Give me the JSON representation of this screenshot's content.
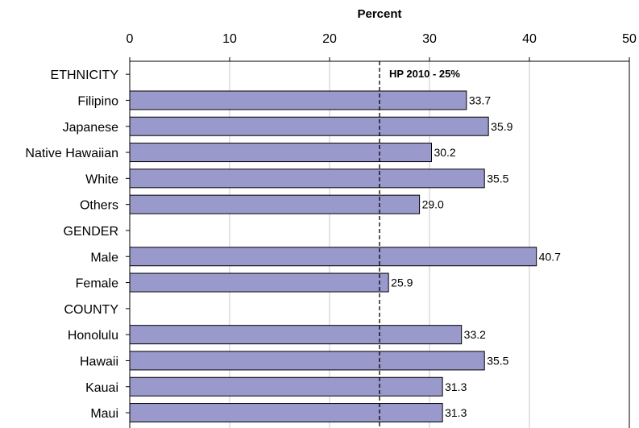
{
  "chart_data": {
    "type": "bar",
    "orientation": "horizontal",
    "xlabel": "Percent",
    "xlim": [
      0,
      50
    ],
    "xticks": [
      0,
      10,
      20,
      30,
      40,
      50
    ],
    "xaxis_position": "top",
    "grid": "vertical",
    "legend": "none",
    "bar_color": "#9999cc",
    "bar_edge_color": "#000000",
    "categories": [
      "ETHNICITY",
      "Filipino",
      "Japanese",
      "Native Hawaiian",
      "White",
      "Others",
      "GENDER",
      "Male",
      "Female",
      "COUNTY",
      "Honolulu",
      "Hawaii",
      "Kauai",
      "Maui"
    ],
    "values": [
      null,
      33.7,
      35.9,
      30.2,
      35.5,
      29.0,
      null,
      40.7,
      25.9,
      null,
      33.2,
      35.5,
      31.3,
      31.3
    ],
    "data_labels": [
      "",
      "33.7",
      "35.9",
      "30.2",
      "35.5",
      "29.0",
      "",
      "40.7",
      "25.9",
      "",
      "33.2",
      "35.5",
      "31.3",
      "31.3"
    ],
    "reference_line": {
      "value": 25,
      "label": "HP 2010 - 25%",
      "style": "dashed"
    }
  }
}
